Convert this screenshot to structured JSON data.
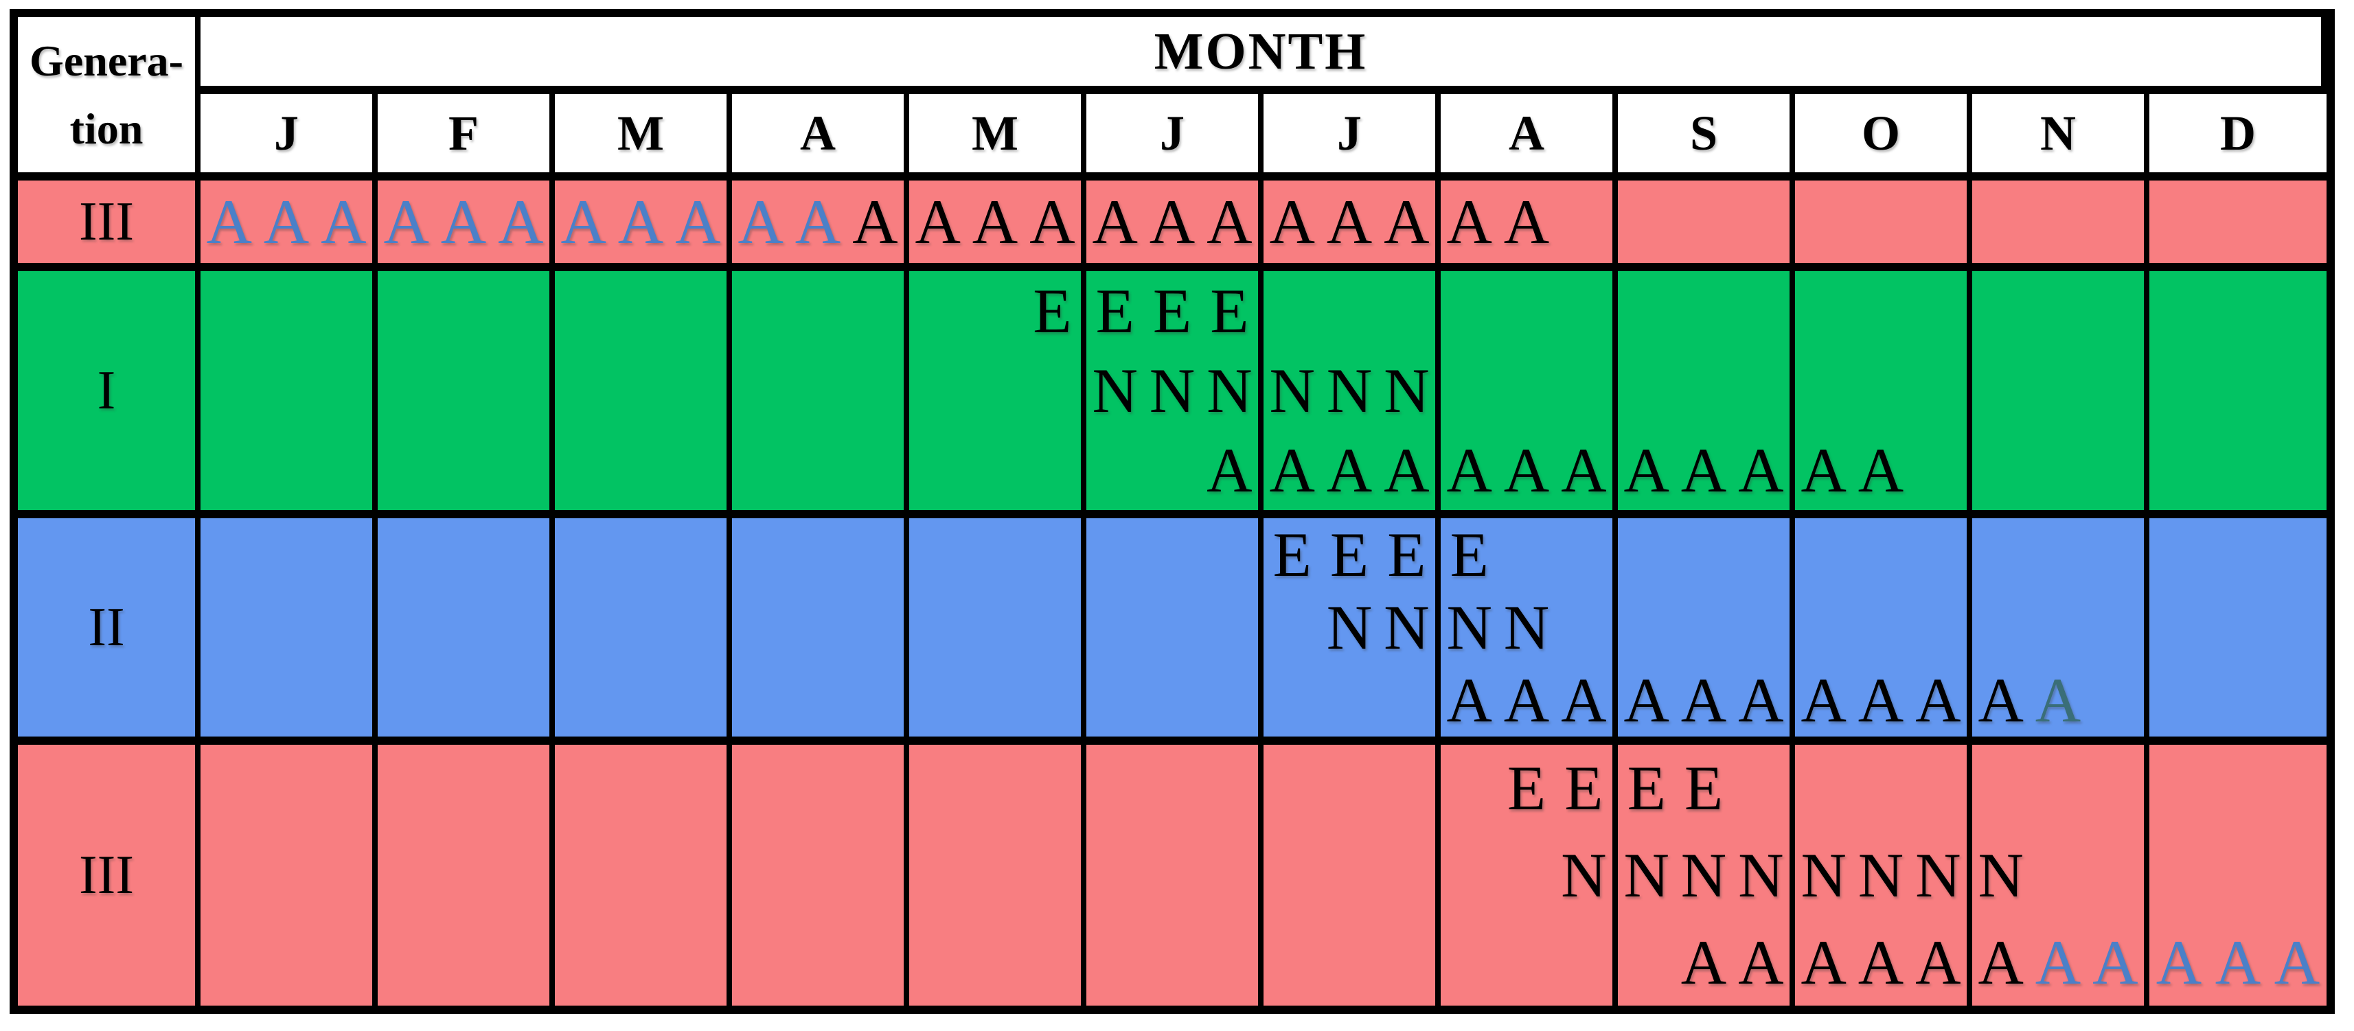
{
  "header": {
    "gen_line1": "Genera-",
    "gen_line2": "tion",
    "month_label": "MONTH"
  },
  "colors": {
    "background": {
      "salmon": "#F87E81",
      "green": "#02C363",
      "blue": "#6397F0",
      "header": "#ffffff"
    },
    "letters": {
      "black": "#000000",
      "blue": "#4B80C8",
      "teal": "#3A6E78"
    },
    "border": "#000000"
  },
  "chart_data": {
    "type": "table",
    "title": "Seasonal occurrence of generations by life stage",
    "x_axis_label": "MONTH",
    "x_categories": [
      "J",
      "F",
      "M",
      "A",
      "M",
      "J",
      "J",
      "A",
      "S",
      "O",
      "N",
      "D"
    ],
    "x_resolution": "three slots per month (early / mid / late)",
    "row_axis_label": "Generation",
    "stage_letters_seen": [
      "E",
      "N",
      "A"
    ],
    "rows": [
      {
        "generation": "III",
        "bg": "salmon",
        "lines": [
          {
            "stage": "A",
            "cells": [
              [
                "A:blue",
                "A:blue",
                "A:blue"
              ],
              [
                "A:blue",
                "A:blue",
                "A:blue"
              ],
              [
                "A:blue",
                "A:blue",
                "A:blue"
              ],
              [
                "A:blue",
                "A:blue",
                "A:black"
              ],
              [
                "A:black",
                "A:black",
                "A:black"
              ],
              [
                "A:black",
                "A:black",
                "A:black"
              ],
              [
                "A:black",
                "A:black",
                "A:black"
              ],
              [
                "A:black",
                "A:black",
                ""
              ],
              [
                "",
                "",
                ""
              ],
              [
                "",
                "",
                ""
              ],
              [
                "",
                "",
                ""
              ],
              [
                "",
                "",
                ""
              ]
            ]
          }
        ]
      },
      {
        "generation": "I",
        "bg": "green",
        "lines": [
          {
            "stage": "E",
            "cells": [
              [
                "",
                "",
                ""
              ],
              [
                "",
                "",
                ""
              ],
              [
                "",
                "",
                ""
              ],
              [
                "",
                "",
                ""
              ],
              [
                "",
                "",
                "E:black"
              ],
              [
                "E:black",
                "E:black",
                "E:black"
              ],
              [
                "",
                "",
                ""
              ],
              [
                "",
                "",
                ""
              ],
              [
                "",
                "",
                ""
              ],
              [
                "",
                "",
                ""
              ],
              [
                "",
                "",
                ""
              ],
              [
                "",
                "",
                ""
              ]
            ]
          },
          {
            "stage": "N",
            "cells": [
              [
                "",
                "",
                ""
              ],
              [
                "",
                "",
                ""
              ],
              [
                "",
                "",
                ""
              ],
              [
                "",
                "",
                ""
              ],
              [
                "",
                "",
                ""
              ],
              [
                "N:black",
                "N:black",
                "N:black"
              ],
              [
                "N:black",
                "N:black",
                "N:black"
              ],
              [
                "",
                "",
                ""
              ],
              [
                "",
                "",
                ""
              ],
              [
                "",
                "",
                ""
              ],
              [
                "",
                "",
                ""
              ],
              [
                "",
                "",
                ""
              ]
            ]
          },
          {
            "stage": "A",
            "cells": [
              [
                "",
                "",
                ""
              ],
              [
                "",
                "",
                ""
              ],
              [
                "",
                "",
                ""
              ],
              [
                "",
                "",
                ""
              ],
              [
                "",
                "",
                ""
              ],
              [
                "",
                "",
                "A:black"
              ],
              [
                "A:black",
                "A:black",
                "A:black"
              ],
              [
                "A:black",
                "A:black",
                "A:black"
              ],
              [
                "A:black",
                "A:black",
                "A:black"
              ],
              [
                "A:black",
                "A:black",
                ""
              ],
              [
                "",
                "",
                ""
              ],
              [
                "",
                "",
                ""
              ]
            ]
          }
        ]
      },
      {
        "generation": "II",
        "bg": "blue",
        "lines": [
          {
            "stage": "E",
            "cells": [
              [
                "",
                "",
                ""
              ],
              [
                "",
                "",
                ""
              ],
              [
                "",
                "",
                ""
              ],
              [
                "",
                "",
                ""
              ],
              [
                "",
                "",
                ""
              ],
              [
                "",
                "",
                ""
              ],
              [
                "E:black",
                "E:black",
                "E:black"
              ],
              [
                "E:black",
                "",
                ""
              ],
              [
                "",
                "",
                ""
              ],
              [
                "",
                "",
                ""
              ],
              [
                "",
                "",
                ""
              ],
              [
                "",
                "",
                ""
              ]
            ]
          },
          {
            "stage": "N",
            "cells": [
              [
                "",
                "",
                ""
              ],
              [
                "",
                "",
                ""
              ],
              [
                "",
                "",
                ""
              ],
              [
                "",
                "",
                ""
              ],
              [
                "",
                "",
                ""
              ],
              [
                "",
                "",
                ""
              ],
              [
                "",
                "N:black",
                "N:black"
              ],
              [
                "N:black",
                "N:black",
                ""
              ],
              [
                "",
                "",
                ""
              ],
              [
                "",
                "",
                ""
              ],
              [
                "",
                "",
                ""
              ],
              [
                "",
                "",
                ""
              ]
            ]
          },
          {
            "stage": "A",
            "cells": [
              [
                "",
                "",
                ""
              ],
              [
                "",
                "",
                ""
              ],
              [
                "",
                "",
                ""
              ],
              [
                "",
                "",
                ""
              ],
              [
                "",
                "",
                ""
              ],
              [
                "",
                "",
                ""
              ],
              [
                "",
                "",
                ""
              ],
              [
                "A:black",
                "A:black",
                "A:black"
              ],
              [
                "A:black",
                "A:black",
                "A:black"
              ],
              [
                "A:black",
                "A:black",
                "A:black"
              ],
              [
                "A:black",
                "A:teal",
                ""
              ],
              [
                "",
                "",
                ""
              ]
            ]
          }
        ]
      },
      {
        "generation": "III",
        "bg": "salmon",
        "lines": [
          {
            "stage": "E",
            "cells": [
              [
                "",
                "",
                ""
              ],
              [
                "",
                "",
                ""
              ],
              [
                "",
                "",
                ""
              ],
              [
                "",
                "",
                ""
              ],
              [
                "",
                "",
                ""
              ],
              [
                "",
                "",
                ""
              ],
              [
                "",
                "",
                ""
              ],
              [
                "",
                "E:black",
                "E:black"
              ],
              [
                "E:black",
                "E:black",
                ""
              ],
              [
                "",
                "",
                ""
              ],
              [
                "",
                "",
                ""
              ],
              [
                "",
                "",
                ""
              ]
            ]
          },
          {
            "stage": "N",
            "cells": [
              [
                "",
                "",
                ""
              ],
              [
                "",
                "",
                ""
              ],
              [
                "",
                "",
                ""
              ],
              [
                "",
                "",
                ""
              ],
              [
                "",
                "",
                ""
              ],
              [
                "",
                "",
                ""
              ],
              [
                "",
                "",
                ""
              ],
              [
                "",
                "",
                "N:black"
              ],
              [
                "N:black",
                "N:black",
                "N:black"
              ],
              [
                "N:black",
                "N:black",
                "N:black"
              ],
              [
                "N:black",
                "",
                ""
              ],
              [
                "",
                "",
                ""
              ]
            ]
          },
          {
            "stage": "A",
            "cells": [
              [
                "",
                "",
                ""
              ],
              [
                "",
                "",
                ""
              ],
              [
                "",
                "",
                ""
              ],
              [
                "",
                "",
                ""
              ],
              [
                "",
                "",
                ""
              ],
              [
                "",
                "",
                ""
              ],
              [
                "",
                "",
                ""
              ],
              [
                "",
                "",
                ""
              ],
              [
                "",
                "A:black",
                "A:black"
              ],
              [
                "A:black",
                "A:black",
                "A:black"
              ],
              [
                "A:black",
                "A:blue",
                "A:blue"
              ],
              [
                "A:blue",
                "A:blue",
                "A:blue"
              ]
            ]
          }
        ]
      }
    ]
  }
}
